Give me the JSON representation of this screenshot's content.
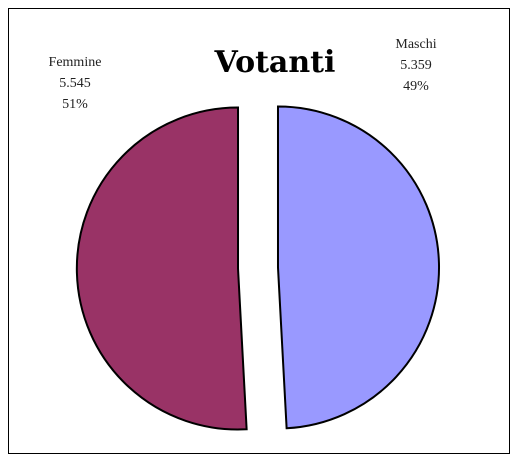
{
  "chart_data": {
    "type": "pie",
    "title": "Votanti",
    "exploded": true,
    "slices": [
      {
        "label": "Maschi",
        "value": 5359,
        "value_text": "5.359",
        "percent_text": "49%",
        "color": "#9999ff"
      },
      {
        "label": "Femmine",
        "value": 5545,
        "value_text": "5.545",
        "percent_text": "51%",
        "color": "#993366"
      }
    ]
  }
}
